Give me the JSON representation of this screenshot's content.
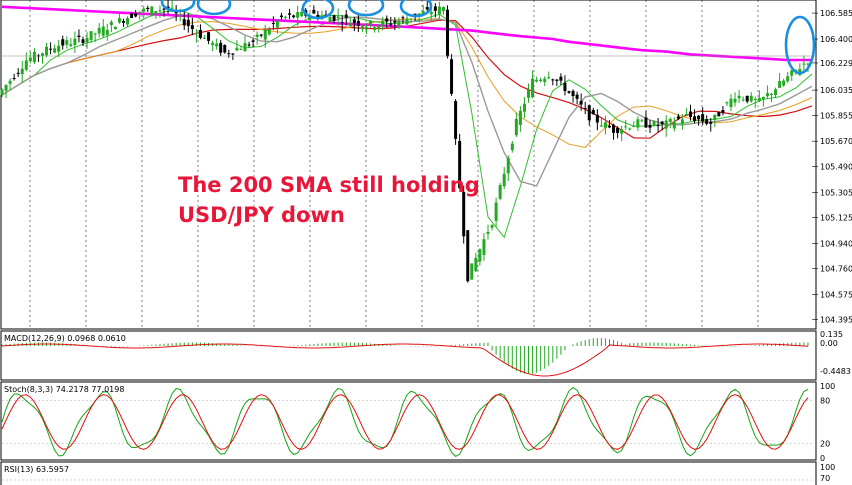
{
  "annotation": {
    "line1": "The 200 SMA still holding",
    "line2": "USD/JPY down"
  },
  "price_panel": {
    "y_ticks": [
      "106.585",
      "106.400",
      "106.229",
      "106.035",
      "105.855",
      "105.670",
      "105.490",
      "105.305",
      "105.125",
      "104.940",
      "104.760",
      "104.575",
      "104.395"
    ],
    "current_price": "106.229"
  },
  "macd_panel": {
    "title": "MACD(12,26,9) 0.0968 0.0610",
    "y_ticks": [
      "0.135",
      "0.00",
      "-0.4483"
    ]
  },
  "stoch_panel": {
    "title": "Stoch(8,3,3) 74.2178 77.0198",
    "y_ticks": [
      "100",
      "80",
      "20",
      "0"
    ]
  },
  "rsi_panel": {
    "title": "RSI(13) 63.5957",
    "y_ticks": [
      "100",
      "70"
    ]
  },
  "colors": {
    "bull_candle": "#22aa22",
    "bear_candle": "#000000",
    "sma200": "#ff00ff",
    "sma100": "#d01010",
    "sma50": "#9a9a9a",
    "sma20": "#2ec02e",
    "ema": "#e8a020",
    "annotation": "#e8173a",
    "circles": "#1a8fe0",
    "stoch_main": "#17a317",
    "stoch_signal": "#e01010"
  },
  "chart_data": [
    {
      "type": "line",
      "title": "",
      "ylim": [
        104.35,
        106.65
      ],
      "x": [
        0,
        7,
        14,
        21,
        28,
        35,
        42,
        49,
        56,
        63,
        70,
        77,
        84,
        91,
        98,
        104,
        110,
        116,
        122,
        128,
        132,
        136,
        140,
        146,
        152,
        158,
        164,
        170,
        176,
        182,
        188,
        194,
        200
      ],
      "series": [
        {
          "name": "",
          "values": [
            106.0,
            106.25,
            106.35,
            106.4,
            106.5,
            106.6,
            106.62,
            106.45,
            106.3,
            106.38,
            106.55,
            106.58,
            106.55,
            106.5,
            106.52,
            106.58,
            106.62,
            104.7,
            105.1,
            105.8,
            106.1,
            106.15,
            106.05,
            105.85,
            105.75,
            105.8,
            105.78,
            105.85,
            105.8,
            106.0,
            105.95,
            106.1,
            106.25
          ]
        },
        {
          "name": "",
          "values": [
            106.63,
            106.62,
            106.61,
            106.6,
            106.59,
            106.58,
            106.57,
            106.56,
            106.55,
            106.54,
            106.53,
            106.52,
            106.51,
            106.5,
            106.49,
            106.48,
            106.47,
            106.46,
            106.44,
            106.42,
            106.41,
            106.4,
            106.38,
            106.36,
            106.34,
            106.32,
            106.31,
            106.29,
            106.28,
            106.27,
            106.26,
            106.25,
            106.25
          ]
        }
      ]
    },
    {
      "type": "bar",
      "title": "MACD(12,26,9) 0.0968 0.0610",
      "ylim": [
        -0.5,
        0.15
      ]
    },
    {
      "type": "line",
      "title": "Stoch(8,3,3) 74.2178 77.0198",
      "ylim": [
        0,
        100
      ]
    },
    {
      "type": "line",
      "title": "RSI(13) 63.5957",
      "ylim": [
        0,
        100
      ]
    }
  ]
}
